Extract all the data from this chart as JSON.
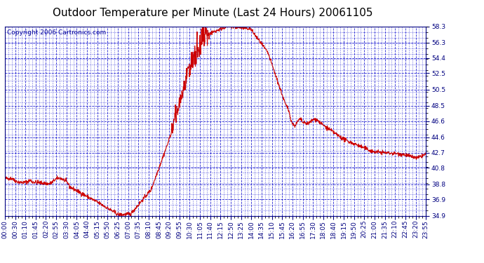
{
  "title": "Outdoor Temperature per Minute (Last 24 Hours) 20061105",
  "copyright_text": "Copyright 2006 Cartronics.com",
  "background_color": "#ffffff",
  "plot_background_color": "#ffffff",
  "grid_color": "#0000cc",
  "line_color": "#cc0000",
  "line_width": 0.8,
  "yticks": [
    34.9,
    36.9,
    38.8,
    40.8,
    42.7,
    44.6,
    46.6,
    48.5,
    50.5,
    52.5,
    54.4,
    56.3,
    58.3
  ],
  "ymin": 34.9,
  "ymax": 58.3,
  "xtick_labels": [
    "00:00",
    "00:30",
    "01:10",
    "01:45",
    "02:20",
    "02:55",
    "03:30",
    "04:05",
    "04:40",
    "05:15",
    "05:50",
    "06:25",
    "07:00",
    "07:35",
    "08:10",
    "08:45",
    "09:20",
    "09:55",
    "10:30",
    "11:05",
    "11:40",
    "12:15",
    "12:50",
    "13:25",
    "14:00",
    "14:35",
    "15:10",
    "15:45",
    "16:20",
    "16:55",
    "17:30",
    "18:05",
    "18:40",
    "19:15",
    "19:50",
    "20:25",
    "21:00",
    "21:35",
    "22:10",
    "22:45",
    "23:20",
    "23:55"
  ],
  "title_fontsize": 11,
  "tick_fontsize": 6.5,
  "copyright_fontsize": 6.5
}
